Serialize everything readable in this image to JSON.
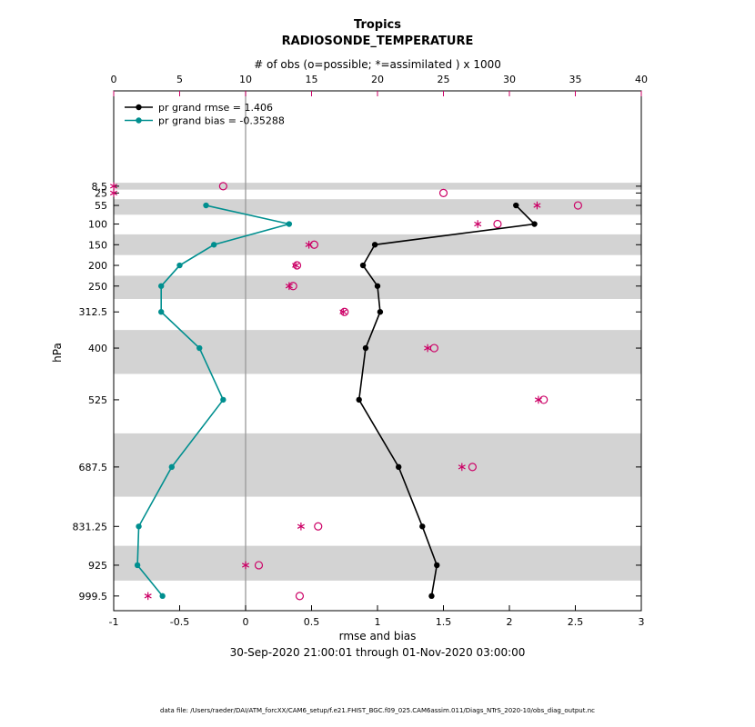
{
  "figure": {
    "title1": "Tropics",
    "title2": "RADIOSONDE_TEMPERATURE",
    "obs_axis_label": "# of obs (o=possible; *=assimilated ) x 1000",
    "ylabel": "hPa",
    "xlabel": "rmse and bias",
    "date_range": "30-Sep-2020 21:00:01 through 01-Nov-2020 03:00:00",
    "footer": "data file: /Users/raeder/DAI/ATM_forcXX/CAM6_setup/f.e21.FHIST_BGC.f09_025.CAM6assim.011/Diags_NTrS_2020-10/obs_diag_output.nc",
    "legend": [
      {
        "label": "pr grand rmse = 1.406",
        "series": "rmse",
        "color": "#000000"
      },
      {
        "label": "pr grand bias = -0.35288",
        "series": "bias",
        "color": "#008f8f"
      }
    ],
    "colors": {
      "rmse": "#000000",
      "bias": "#008f8f",
      "obs": "#cc0066",
      "legend_text": "#0000ff",
      "band": "#d3d3d3",
      "zero_line": "#999999",
      "axis": "#000000"
    }
  },
  "chart_data": {
    "type": "line",
    "title": "Tropics",
    "subtitle": "RADIOSONDE_TEMPERATURE",
    "orientation": "vertical-profile",
    "y_axis": {
      "label": "hPa",
      "levels": [
        8.5,
        25,
        55,
        100,
        150,
        200,
        250,
        312.5,
        400,
        525,
        687.5,
        831.25,
        925,
        999.5
      ],
      "lim": [
        -222,
        1035
      ],
      "direction": "increasing-down"
    },
    "x_axis_bottom": {
      "label": "rmse and bias",
      "ticks": [
        -1,
        -0.5,
        0,
        0.5,
        1,
        1.5,
        2,
        2.5,
        3
      ],
      "lim": [
        -1,
        3
      ]
    },
    "x_axis_top": {
      "label": "# of obs (o=possible; *=assimilated ) x 1000",
      "ticks": [
        0,
        5,
        10,
        15,
        20,
        25,
        30,
        35,
        40
      ],
      "lim": [
        0,
        40
      ]
    },
    "series": [
      {
        "name": "rmse",
        "legend": "pr grand rmse = 1.406",
        "grand_value": 1.406,
        "color": "#000000",
        "marker": "dot",
        "levels": [
          55,
          100,
          150,
          200,
          250,
          312.5,
          400,
          525,
          687.5,
          831.25,
          925,
          999.5
        ],
        "values": [
          2.05,
          2.19,
          0.98,
          0.89,
          1.0,
          1.02,
          0.91,
          0.86,
          1.16,
          1.34,
          1.45,
          1.41
        ]
      },
      {
        "name": "bias",
        "legend": "pr grand bias = -0.35288",
        "grand_value": -0.35288,
        "color": "#008f8f",
        "marker": "dot",
        "levels": [
          55,
          100,
          150,
          200,
          250,
          312.5,
          400,
          525,
          687.5,
          831.25,
          925,
          999.5
        ],
        "values": [
          -0.3,
          0.33,
          -0.24,
          -0.5,
          -0.64,
          -0.64,
          -0.35,
          -0.17,
          -0.56,
          -0.81,
          -0.82,
          -0.63
        ]
      }
    ],
    "obs_counts": {
      "units": "x 1000",
      "axis": "top",
      "levels": [
        8.5,
        25,
        55,
        100,
        150,
        200,
        250,
        312.5,
        400,
        525,
        687.5,
        831.25,
        925,
        999.5
      ],
      "possible": [
        8.3,
        25.0,
        35.2,
        29.1,
        15.2,
        13.9,
        13.6,
        17.5,
        24.3,
        32.6,
        27.2,
        15.5,
        11.0,
        14.1
      ],
      "assimilated": [
        0.0,
        0.0,
        32.1,
        27.6,
        14.8,
        13.8,
        13.3,
        17.4,
        23.8,
        32.2,
        26.4,
        14.2,
        10.0,
        2.6
      ]
    },
    "shaded_levels": [
      8.5,
      55,
      150,
      250,
      400,
      687.5,
      925
    ],
    "zero_reference_line": 0,
    "grid": false,
    "legend_position": "top-left-inside"
  }
}
